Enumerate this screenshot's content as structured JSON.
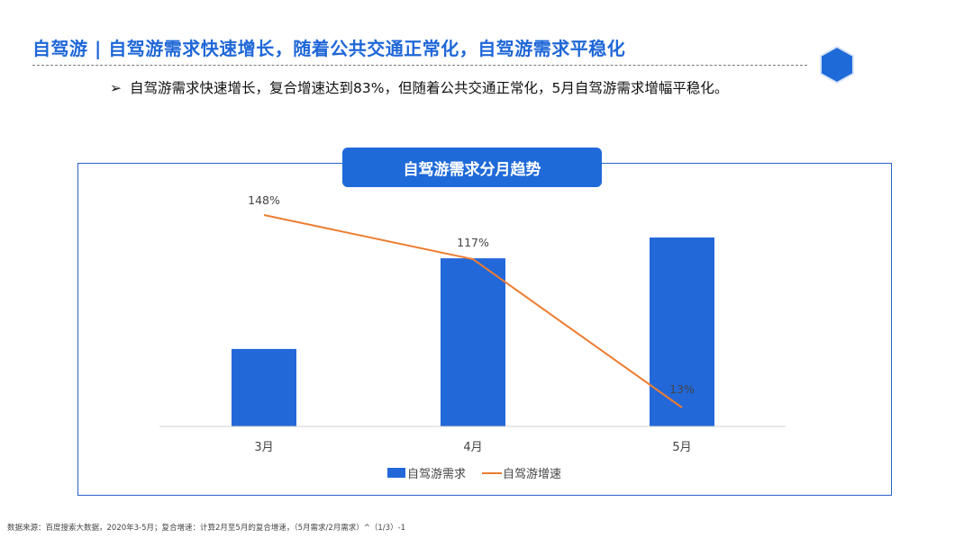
{
  "header": {
    "title": "自驾游 | 自驾游需求快速增长，随着公共交通正常化，自驾游需求平稳化",
    "bullet_mark": "➢",
    "bullet_text": "自驾游需求快速增长，复合增速达到83%，但随着公共交通正常化，5月自驾游需求增幅平稳化。"
  },
  "colors": {
    "accent": "#1F67D8",
    "bar": "#2268D9",
    "line": "#ED7D31",
    "hex": "#1F6AD9"
  },
  "chart_data": {
    "type": "bar",
    "title": "自驾游需求分月趋势",
    "categories": [
      "3月",
      "4月",
      "5月"
    ],
    "series": [
      {
        "name": "自驾游需求",
        "kind": "bar",
        "values": [
          41,
          89,
          100
        ]
      },
      {
        "name": "自驾游增速",
        "kind": "line",
        "values": [
          148,
          117,
          13
        ],
        "labels": [
          "148%",
          "117%",
          "13%"
        ]
      }
    ],
    "legend_position": "bottom",
    "grid": false,
    "xlabel": "",
    "ylabel": ""
  },
  "footer": {
    "source": "数据来源：百度搜索大数据，2020年3-5月；复合增速：计算2月至5月的复合增速，（5月需求/2月需求）^（1/3）-1"
  }
}
